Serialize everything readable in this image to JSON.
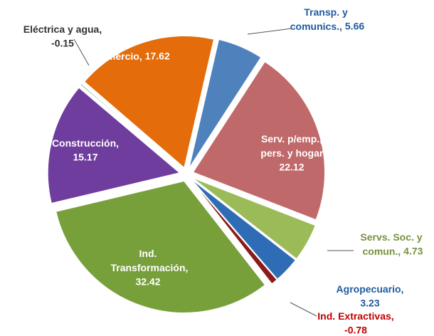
{
  "chart_data": {
    "type": "pie",
    "categories": [
      "Transp. y comunics.,",
      "Serv. p/emp., pers. y hogar,",
      "Servs. Soc. y comun.,",
      "Agropecuario,",
      "Ind. Extractivas,",
      "Ind. Transformación,",
      "Construcción,",
      "Eléctrica y agua,",
      "Comercio,"
    ],
    "values": [
      5.66,
      22.12,
      4.73,
      3.23,
      -0.78,
      32.42,
      15.17,
      -0.15,
      17.62
    ],
    "colors": [
      "#4f81bd",
      "#c0696a",
      "#9bbb59",
      "#2e6db5",
      "#8b1a1a",
      "#77a03a",
      "#6e3d9e",
      "#8c9a6a",
      "#e46c0a"
    ]
  }
}
